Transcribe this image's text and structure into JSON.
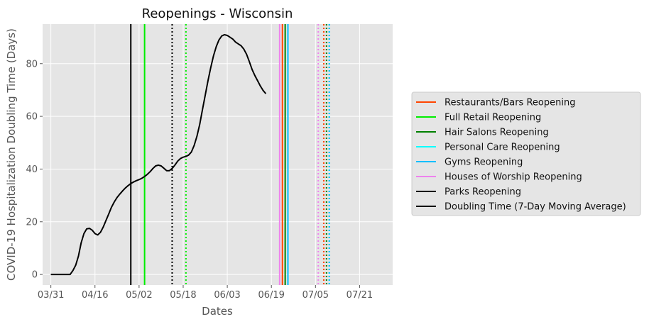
{
  "chart_data": {
    "type": "line",
    "title": "Reopenings - Wisconsin",
    "xlabel": "Dates",
    "ylabel": "COVID-19 Hospitalization Doubling Time (Days)",
    "xlim": [
      "2020-03-28",
      "2020-08-02"
    ],
    "ylim": [
      -4,
      95
    ],
    "x_ticks": [
      "03/31",
      "04/16",
      "05/02",
      "05/18",
      "06/03",
      "06/19",
      "07/05",
      "07/21"
    ],
    "x_tick_dates": [
      "2020-03-31",
      "2020-04-16",
      "2020-05-02",
      "2020-05-18",
      "2020-06-03",
      "2020-06-19",
      "2020-07-05",
      "2020-07-21"
    ],
    "y_ticks": [
      0,
      20,
      40,
      60,
      80
    ],
    "grid": true,
    "legend_placement": "outside-right",
    "series": [
      {
        "name": "Doubling Time (7-Day Moving Average)",
        "color": "#000000",
        "points": [
          [
            "2020-03-31",
            0
          ],
          [
            "2020-04-01",
            0
          ],
          [
            "2020-04-02",
            0
          ],
          [
            "2020-04-03",
            0
          ],
          [
            "2020-04-04",
            0
          ],
          [
            "2020-04-05",
            0
          ],
          [
            "2020-04-06",
            0
          ],
          [
            "2020-04-07",
            0
          ],
          [
            "2020-04-08",
            1.5
          ],
          [
            "2020-04-09",
            3.5
          ],
          [
            "2020-04-10",
            7
          ],
          [
            "2020-04-11",
            12
          ],
          [
            "2020-04-12",
            15.5
          ],
          [
            "2020-04-13",
            17.3
          ],
          [
            "2020-04-14",
            17.5
          ],
          [
            "2020-04-15",
            16.8
          ],
          [
            "2020-04-16",
            15.5
          ],
          [
            "2020-04-17",
            15
          ],
          [
            "2020-04-18",
            16
          ],
          [
            "2020-04-19",
            18
          ],
          [
            "2020-04-20",
            20.5
          ],
          [
            "2020-04-21",
            23
          ],
          [
            "2020-04-22",
            25.5
          ],
          [
            "2020-04-23",
            27.5
          ],
          [
            "2020-04-24",
            29.2
          ],
          [
            "2020-04-25",
            30.5
          ],
          [
            "2020-04-26",
            31.7
          ],
          [
            "2020-04-27",
            32.8
          ],
          [
            "2020-04-28",
            33.7
          ],
          [
            "2020-04-29",
            34.5
          ],
          [
            "2020-04-30",
            35.1
          ],
          [
            "2020-05-01",
            35.6
          ],
          [
            "2020-05-02",
            36
          ],
          [
            "2020-05-03",
            36.5
          ],
          [
            "2020-05-04",
            37.2
          ],
          [
            "2020-05-05",
            38
          ],
          [
            "2020-05-06",
            39
          ],
          [
            "2020-05-07",
            40.2
          ],
          [
            "2020-05-08",
            41.2
          ],
          [
            "2020-05-09",
            41.5
          ],
          [
            "2020-05-10",
            41.2
          ],
          [
            "2020-05-11",
            40.3
          ],
          [
            "2020-05-12",
            39.4
          ],
          [
            "2020-05-13",
            39.4
          ],
          [
            "2020-05-14",
            40.2
          ],
          [
            "2020-05-15",
            41.5
          ],
          [
            "2020-05-16",
            43
          ],
          [
            "2020-05-17",
            44
          ],
          [
            "2020-05-18",
            44.5
          ],
          [
            "2020-05-19",
            44.8
          ],
          [
            "2020-05-20",
            45.3
          ],
          [
            "2020-05-21",
            46.5
          ],
          [
            "2020-05-22",
            49
          ],
          [
            "2020-05-23",
            52.5
          ],
          [
            "2020-05-24",
            57
          ],
          [
            "2020-05-25",
            62.5
          ],
          [
            "2020-05-26",
            68
          ],
          [
            "2020-05-27",
            73.5
          ],
          [
            "2020-05-28",
            78.5
          ],
          [
            "2020-05-29",
            83
          ],
          [
            "2020-05-30",
            86.5
          ],
          [
            "2020-05-31",
            89
          ],
          [
            "2020-06-01",
            90.5
          ],
          [
            "2020-06-02",
            91
          ],
          [
            "2020-06-03",
            90.7
          ],
          [
            "2020-06-04",
            90
          ],
          [
            "2020-06-05",
            89.3
          ],
          [
            "2020-06-06",
            88.2
          ],
          [
            "2020-06-07",
            87.5
          ],
          [
            "2020-06-08",
            86.8
          ],
          [
            "2020-06-09",
            85.5
          ],
          [
            "2020-06-10",
            83.5
          ],
          [
            "2020-06-11",
            80.8
          ],
          [
            "2020-06-12",
            77.8
          ],
          [
            "2020-06-13",
            75.5
          ],
          [
            "2020-06-14",
            73.5
          ],
          [
            "2020-06-15",
            71.5
          ],
          [
            "2020-06-16",
            69.8
          ],
          [
            "2020-06-17",
            68.6
          ]
        ]
      }
    ],
    "reopening_lines": [
      {
        "name": "Restaurants/Bars Reopening",
        "color": "#ff4500",
        "dates": [
          {
            "date": "2020-06-23",
            "style": "solid"
          },
          {
            "date": "2020-07-08",
            "style": "dotted"
          }
        ]
      },
      {
        "name": "Full Retail Reopening",
        "color": "#00ee00",
        "dates": [
          {
            "date": "2020-05-04",
            "style": "solid"
          },
          {
            "date": "2020-05-19",
            "style": "dotted"
          }
        ]
      },
      {
        "name": "Hair Salons Reopening",
        "color": "#008000",
        "dates": [
          {
            "date": "2020-06-24",
            "style": "solid"
          },
          {
            "date": "2020-07-09",
            "style": "dotted"
          }
        ]
      },
      {
        "name": "Personal Care Reopening",
        "color": "#00ffff",
        "dates": [
          {
            "date": "2020-06-25",
            "style": "solid"
          },
          {
            "date": "2020-07-10",
            "style": "dotted"
          }
        ]
      },
      {
        "name": "Gyms Reopening",
        "color": "#00bfff",
        "dates": [
          {
            "date": "2020-06-25",
            "style": "solid"
          },
          {
            "date": "2020-07-10",
            "style": "dotted"
          }
        ]
      },
      {
        "name": "Houses of Worship Reopening",
        "color": "#ee82ee",
        "dates": [
          {
            "date": "2020-06-22",
            "style": "solid"
          },
          {
            "date": "2020-07-06",
            "style": "dotted"
          }
        ]
      },
      {
        "name": "Parks Reopening",
        "color": "#000000",
        "dates": [
          {
            "date": "2020-04-29",
            "style": "solid"
          },
          {
            "date": "2020-05-14",
            "style": "dotted"
          }
        ]
      }
    ],
    "legend": [
      {
        "label": "Restaurants/Bars Reopening",
        "color": "#ff4500"
      },
      {
        "label": "Full Retail Reopening",
        "color": "#00ee00"
      },
      {
        "label": "Hair Salons Reopening",
        "color": "#008000"
      },
      {
        "label": "Personal Care Reopening",
        "color": "#00ffff"
      },
      {
        "label": "Gyms Reopening",
        "color": "#00bfff"
      },
      {
        "label": "Houses of Worship Reopening",
        "color": "#ee82ee"
      },
      {
        "label": "Parks Reopening",
        "color": "#000000"
      },
      {
        "label": "Doubling Time (7-Day Moving Average)",
        "color": "#000000"
      }
    ]
  }
}
